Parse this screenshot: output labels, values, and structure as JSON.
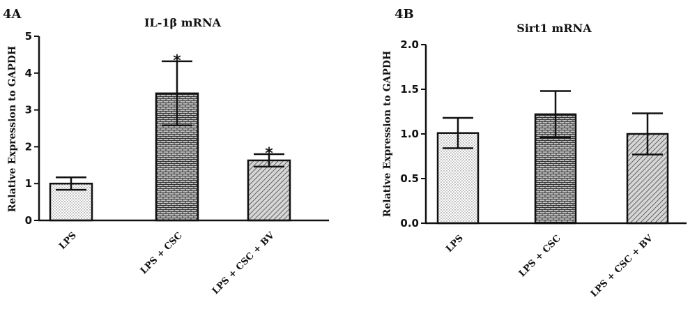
{
  "chart_data": [
    {
      "type": "bar",
      "panel": "4A",
      "title": "IL-1β mRNA",
      "ylabel": "Relative Expression to GAPDH",
      "xlabel": "",
      "ylim": [
        0,
        5
      ],
      "yticks": [
        "0",
        "1",
        "2",
        "3",
        "4",
        "5"
      ],
      "categories": [
        "LPS",
        "LPS + CSC",
        "LPS + CSC + BV"
      ],
      "values": [
        1.0,
        3.45,
        1.63
      ],
      "errors": [
        0.17,
        0.87,
        0.17
      ],
      "significance": [
        "",
        "*",
        "*"
      ],
      "patterns": [
        "dots",
        "bricks",
        "diagonal"
      ],
      "grid": false
    },
    {
      "type": "bar",
      "panel": "4B",
      "title": "Sirt1 mRNA",
      "ylabel": "Relative Expression to GAPDH",
      "xlabel": "",
      "ylim": [
        0,
        2.0
      ],
      "yticks": [
        "0.0",
        "0.5",
        "1.0",
        "1.5",
        "2.0"
      ],
      "categories": [
        "LPS",
        "LPS + CSC",
        "LPS + CSC + BV"
      ],
      "values": [
        1.01,
        1.22,
        1.0
      ],
      "errors": [
        0.17,
        0.26,
        0.23
      ],
      "significance": [
        "",
        "",
        ""
      ],
      "patterns": [
        "dots",
        "bricks",
        "diagonal"
      ],
      "grid": false
    }
  ]
}
